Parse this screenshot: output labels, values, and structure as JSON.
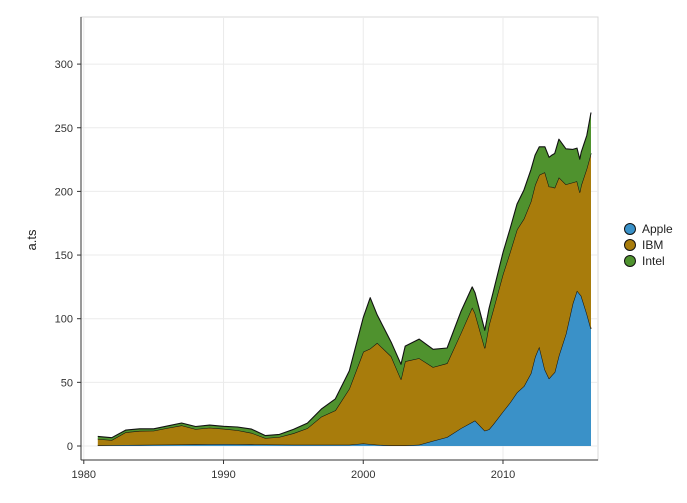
{
  "chart_data": {
    "type": "area",
    "stacked": true,
    "title": "",
    "xlabel": "",
    "ylabel": "a.ts",
    "xlim": [
      1979.8,
      2016.8
    ],
    "ylim": [
      -11,
      337
    ],
    "x_ticks": [
      1980,
      1990,
      2000,
      2010
    ],
    "y_ticks": [
      0,
      50,
      100,
      150,
      200,
      250,
      300
    ],
    "grid": true,
    "legend_position": "right",
    "series": [
      {
        "name": "Apple",
        "color": "#3a91c8",
        "x": [
          1981,
          1985,
          1990,
          1995,
          1999,
          2000,
          2001,
          2002,
          2003,
          2004,
          2005,
          2006,
          2007,
          2008,
          2008.7,
          2009,
          2009.3,
          2010,
          2010.5,
          2011,
          2011.5,
          2012,
          2012.3,
          2012.6,
          2013,
          2013.3,
          2013.7,
          2014,
          2014.5,
          2015,
          2015.3,
          2015.6,
          2016,
          2016.3
        ],
        "values": [
          0.5,
          1,
          1.5,
          1,
          1,
          2,
          1,
          0.5,
          0.5,
          1,
          4,
          7,
          14,
          20,
          12,
          13,
          17,
          27,
          34,
          42,
          47,
          57,
          70,
          78,
          60,
          53,
          58,
          71,
          88,
          112,
          122,
          118,
          104,
          92
        ]
      },
      {
        "name": "IBM",
        "color": "#a87c0c",
        "x": [
          1981,
          1982,
          1983,
          1984,
          1985,
          1986,
          1987,
          1988,
          1989,
          1990,
          1991,
          1992,
          1993,
          1994,
          1995,
          1996,
          1997,
          1998,
          1999,
          2000,
          2000.5,
          2001,
          2002,
          2002.7,
          2003,
          2004,
          2005,
          2006,
          2007,
          2007.8,
          2008.7,
          2009,
          2010,
          2011,
          2012,
          2012.6,
          2013,
          2013.5,
          2014,
          2015,
          2015.5,
          2016,
          2016.3
        ],
        "values": [
          5,
          4,
          10,
          11,
          11,
          13,
          15,
          12,
          13,
          12,
          11,
          9,
          5,
          6,
          9,
          13,
          22,
          27,
          44,
          72,
          75,
          80,
          70,
          52,
          66,
          68,
          58,
          58,
          75,
          90,
          65,
          82,
          108,
          128,
          135,
          135,
          155,
          148,
          140,
          95,
          80,
          114,
          138
        ]
      },
      {
        "name": "Intel",
        "color": "#4f922e",
        "x": [
          1981,
          1985,
          1988,
          1990,
          1992,
          1993,
          1994,
          1995,
          1996,
          1997,
          1998,
          1999,
          2000,
          2000.5,
          2001,
          2002,
          2003,
          2004,
          2005,
          2006,
          2007,
          2008,
          2009,
          2010,
          2011,
          2012,
          2013,
          2014,
          2015,
          2016,
          2016.3
        ],
        "values": [
          2,
          1.5,
          2,
          2,
          3,
          2,
          2,
          3,
          4,
          6,
          9,
          14,
          27,
          40,
          22,
          11,
          12,
          15,
          14,
          12,
          17,
          16,
          13,
          17,
          20,
          25,
          20,
          30,
          26,
          26,
          32
        ]
      }
    ]
  }
}
